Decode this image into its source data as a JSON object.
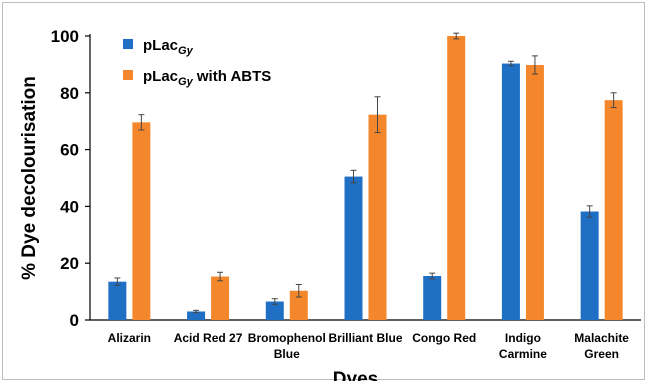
{
  "chart_data": {
    "type": "bar",
    "title": "",
    "xlabel": "Dyes",
    "ylabel": "% Dye decolourisation",
    "ylim": [
      0,
      100
    ],
    "yticks": [
      "0",
      "20",
      "40",
      "60",
      "80",
      "100"
    ],
    "grid": false,
    "legend_position": "top-left",
    "categories": [
      [
        "Alizarin"
      ],
      [
        "Acid Red 27"
      ],
      [
        "Bromophenol",
        "Blue"
      ],
      [
        "Brilliant Blue"
      ],
      [
        "Congo Red"
      ],
      [
        "Indigo",
        "Carmine"
      ],
      [
        "Malachite",
        "Green"
      ]
    ],
    "series": [
      {
        "name": "pLac",
        "name_subscript": "Gy",
        "name_suffix": "",
        "color": "#1f6fc5",
        "values": [
          13.5,
          3.0,
          6.5,
          50.5,
          15.5,
          90.3,
          38.2
        ],
        "errors": [
          1.3,
          0.4,
          1.0,
          2.2,
          1.0,
          0.8,
          2.0
        ]
      },
      {
        "name": "pLac",
        "name_subscript": "Gy",
        "name_suffix": " with ABTS",
        "color": "#f4872c",
        "values": [
          69.6,
          15.3,
          10.3,
          72.3,
          100.0,
          89.8,
          77.4
        ],
        "errors": [
          2.7,
          1.5,
          2.2,
          6.3,
          1.0,
          3.2,
          2.6
        ]
      }
    ]
  }
}
